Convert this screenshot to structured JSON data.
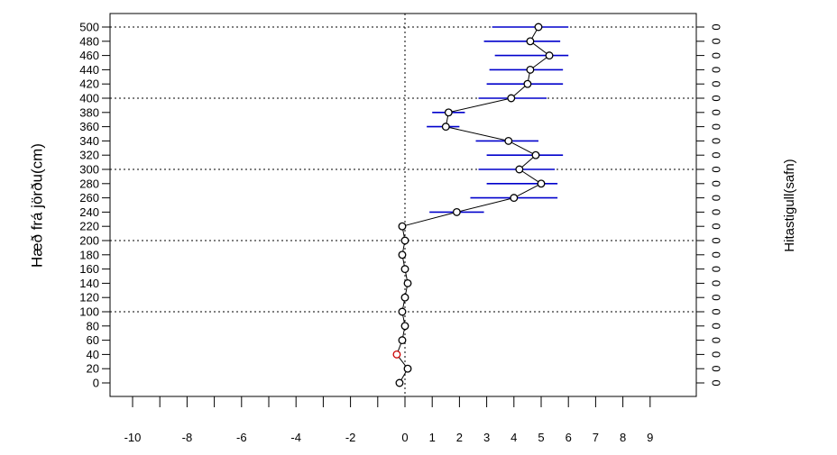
{
  "chart_data": {
    "type": "scatter",
    "title": "",
    "ylabel": "Hæð frá jörðu(cm)",
    "y2label": "Hitastigull(safn)",
    "xlabel": "",
    "xlim": [
      -10,
      10
    ],
    "ylim": [
      -5,
      505
    ],
    "x_tick_labels": [
      "-10",
      "-8",
      "-6",
      "-4",
      "-2",
      "0",
      "1",
      "2",
      "3",
      "4",
      "5",
      "6",
      "7",
      "8",
      "9"
    ],
    "x_ticks": [
      -10,
      -8,
      -6,
      -4,
      -2,
      0,
      1,
      2,
      3,
      4,
      5,
      6,
      7,
      8,
      9
    ],
    "y_tick_labels": [
      "0",
      "20",
      "40",
      "60",
      "80",
      "100",
      "120",
      "140",
      "160",
      "180",
      "200",
      "220",
      "240",
      "260",
      "280",
      "300",
      "320",
      "340",
      "360",
      "380",
      "400",
      "420",
      "440",
      "460",
      "480",
      "500"
    ],
    "y_ticks": [
      0,
      20,
      40,
      60,
      80,
      100,
      120,
      140,
      160,
      180,
      200,
      220,
      240,
      260,
      280,
      300,
      320,
      340,
      360,
      380,
      400,
      420,
      440,
      460,
      480,
      500
    ],
    "right_tick_labels": [
      "0",
      "0",
      "0",
      "0",
      "0",
      "0",
      "0",
      "0",
      "0",
      "0",
      "0",
      "0",
      "0",
      "0",
      "0",
      "0",
      "0",
      "0",
      "0",
      "0",
      "0",
      "0",
      "0",
      "0",
      "0",
      "0"
    ],
    "grid_lines": {
      "horizontal": [
        100,
        200,
        300,
        400,
        500
      ],
      "vertical": [
        0
      ]
    },
    "grid_style": "dotted",
    "series": [
      {
        "points": [
          {
            "height": 0,
            "value": -0.2
          },
          {
            "height": 20,
            "value": 0.1
          },
          {
            "height": 40,
            "value": -0.3,
            "color": "#cc0000"
          },
          {
            "height": 60,
            "value": -0.1
          },
          {
            "height": 80,
            "value": 0.0
          },
          {
            "height": 100,
            "value": -0.1
          },
          {
            "height": 120,
            "value": 0.0
          },
          {
            "height": 140,
            "value": 0.1
          },
          {
            "height": 160,
            "value": 0.0
          },
          {
            "height": 180,
            "value": -0.1
          },
          {
            "height": 200,
            "value": 0.0
          },
          {
            "height": 220,
            "value": -0.1
          },
          {
            "height": 240,
            "value": 1.9,
            "err_low": 0.9,
            "err_high": 2.9
          },
          {
            "height": 260,
            "value": 4.0,
            "err_low": 2.4,
            "err_high": 5.6
          },
          {
            "height": 280,
            "value": 5.0,
            "err_low": 3.0,
            "err_high": 5.6
          },
          {
            "height": 300,
            "value": 4.2,
            "err_low": 2.7,
            "err_high": 5.5
          },
          {
            "height": 320,
            "value": 4.8,
            "err_low": 3.0,
            "err_high": 5.8
          },
          {
            "height": 340,
            "value": 3.8,
            "err_low": 2.6,
            "err_high": 4.9
          },
          {
            "height": 360,
            "value": 1.5,
            "err_low": 0.8,
            "err_high": 2.0
          },
          {
            "height": 380,
            "value": 1.6,
            "err_low": 1.0,
            "err_high": 2.2
          },
          {
            "height": 400,
            "value": 3.9,
            "err_low": 2.7,
            "err_high": 5.2
          },
          {
            "height": 420,
            "value": 4.5,
            "err_low": 3.0,
            "err_high": 5.8
          },
          {
            "height": 440,
            "value": 4.6,
            "err_low": 3.1,
            "err_high": 5.8
          },
          {
            "height": 460,
            "value": 5.3,
            "err_low": 3.3,
            "err_high": 6.0
          },
          {
            "height": 480,
            "value": 4.6,
            "err_low": 2.9,
            "err_high": 5.7
          },
          {
            "height": 500,
            "value": 4.9,
            "err_low": 3.2,
            "err_high": 6.0
          }
        ]
      }
    ],
    "colors": {
      "points": "#000000",
      "error_bars": "#0000cc",
      "highlight_point": "#cc0000"
    }
  }
}
